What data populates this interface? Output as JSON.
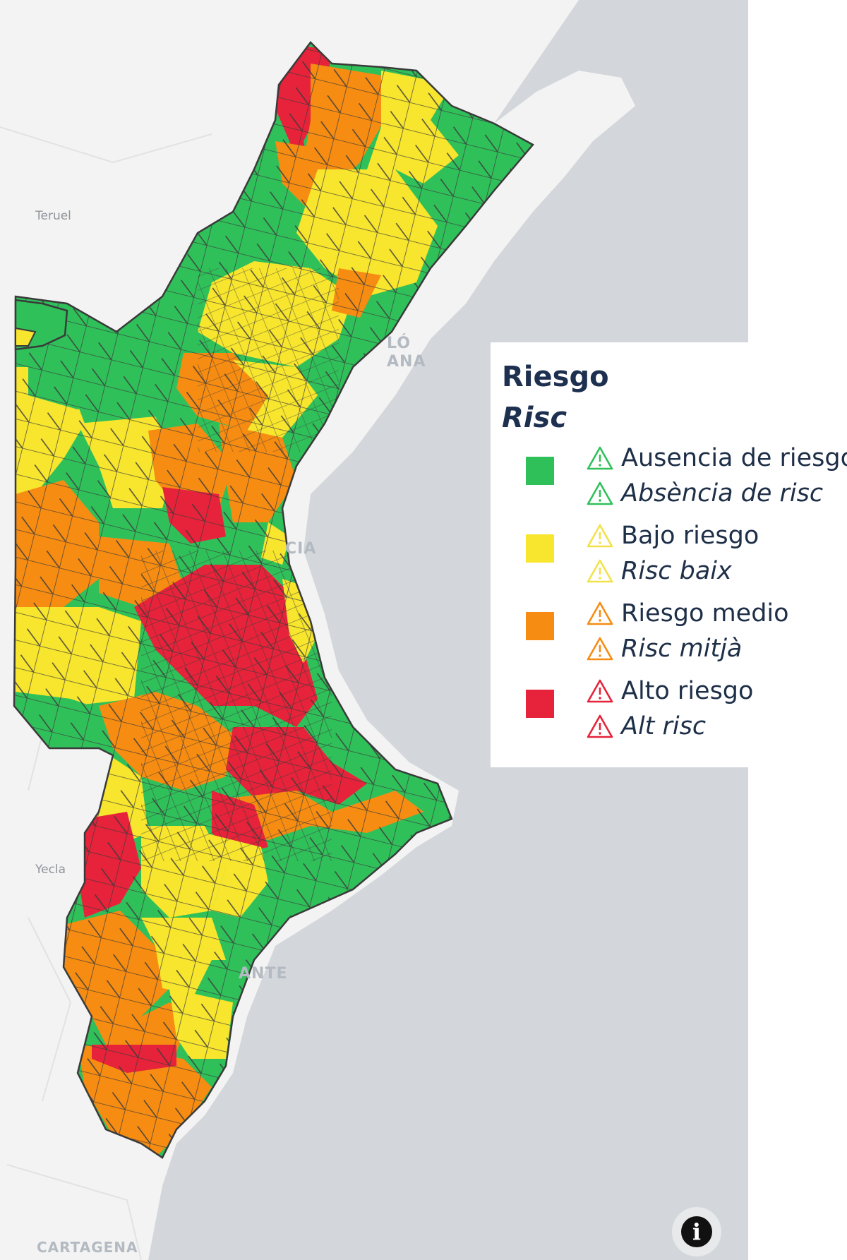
{
  "map": {
    "place_labels": {
      "teruel": "Teruel",
      "castello": "LÓ\nANA",
      "valencia": "CIA",
      "yecla": "Yecla",
      "alicante": "ANTE",
      "cartagena": "CARTAGENA"
    },
    "colors": {
      "sea": "#d3d7db",
      "land": "#f3f3f3",
      "border": "#3a3a3a",
      "ausencia": "#30c05a",
      "bajo": "#f7e52e",
      "medio": "#f68c12",
      "alto": "#e6233a"
    }
  },
  "legend": {
    "title_es": "Riesgo",
    "title_ca": "Risc",
    "items": [
      {
        "key": "ausencia",
        "label_es": "Ausencia de riesgo",
        "label_ca": "Absència de risc",
        "color": "#30c05a",
        "icon": "warning-icon"
      },
      {
        "key": "bajo",
        "label_es": "Bajo riesgo",
        "label_ca": "Risc baix",
        "color": "#f7e52e",
        "icon": "warning-icon"
      },
      {
        "key": "medio",
        "label_es": "Riesgo medio",
        "label_ca": "Risc mitjà",
        "color": "#f68c12",
        "icon": "warning-icon"
      },
      {
        "key": "alto",
        "label_es": "Alto riesgo",
        "label_ca": "Alt risc",
        "color": "#e6233a",
        "icon": "warning-icon"
      }
    ]
  },
  "controls": {
    "info_glyph": "i",
    "info_icon": "info-icon"
  }
}
